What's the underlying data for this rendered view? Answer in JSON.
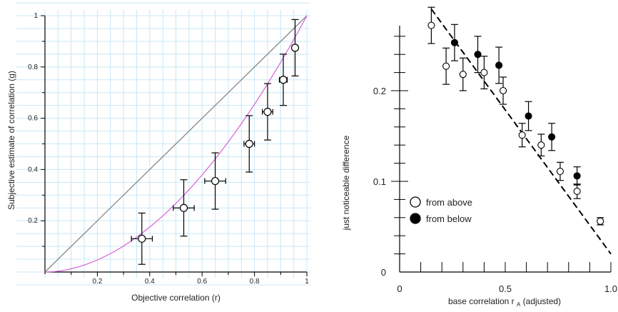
{
  "chart_data": [
    {
      "type": "scatter",
      "xlabel": "Objective correlation (r)",
      "ylabel": "Subjective estimate of correlation (g)",
      "xlim": [
        0,
        1
      ],
      "ylim": [
        0,
        1
      ],
      "x_ticks": [
        "0.2",
        "0.4",
        "0.6",
        "0.8",
        "1"
      ],
      "y_ticks": [
        "0.2",
        "0.4",
        "0.6",
        "0.8",
        "1"
      ],
      "grid": true,
      "grid_color": "#c8e8f5",
      "reference_line": {
        "from": [
          0,
          0
        ],
        "to": [
          1,
          1
        ],
        "color": "#888888"
      },
      "fit_curve": {
        "color": "#d860d8",
        "shape": "power",
        "exponent": 1.9
      },
      "points": [
        {
          "x": 0.37,
          "y": 0.13,
          "x_err": 0.04,
          "y_err": 0.1
        },
        {
          "x": 0.53,
          "y": 0.25,
          "x_err": 0.04,
          "y_err": 0.11
        },
        {
          "x": 0.65,
          "y": 0.355,
          "x_err": 0.04,
          "y_err": 0.11
        },
        {
          "x": 0.78,
          "y": 0.5,
          "x_err": 0.02,
          "y_err": 0.11
        },
        {
          "x": 0.85,
          "y": 0.625,
          "x_err": 0.02,
          "y_err": 0.11
        },
        {
          "x": 0.91,
          "y": 0.75,
          "x_err": 0.015,
          "y_err": 0.1
        },
        {
          "x": 0.955,
          "y": 0.875,
          "x_err": 0.01,
          "y_err": 0.11
        }
      ]
    },
    {
      "type": "scatter",
      "xlabel": "base correlation r",
      "xlabel_subscript": "A",
      "xlabel_suffix": "(adjusted)",
      "ylabel": "just noticeable difference",
      "xlim": [
        0,
        1
      ],
      "ylim": [
        0,
        0.28
      ],
      "x_ticks": [
        "0",
        "0.5",
        "1.0"
      ],
      "y_ticks": [
        "0",
        "0.1",
        "0.2"
      ],
      "legend": {
        "position": "left-center"
      },
      "fit_line": {
        "from": [
          0.15,
          0.29
        ],
        "to": [
          1.0,
          0.02
        ],
        "style": "dashed"
      },
      "series": [
        {
          "name": "from above",
          "fill": "#ffffff",
          "points": [
            {
              "x": 0.15,
              "y": 0.272,
              "err": 0.02
            },
            {
              "x": 0.22,
              "y": 0.227,
              "err": 0.02
            },
            {
              "x": 0.3,
              "y": 0.218,
              "err": 0.018
            },
            {
              "x": 0.4,
              "y": 0.22,
              "err": 0.018
            },
            {
              "x": 0.49,
              "y": 0.2,
              "err": 0.015
            },
            {
              "x": 0.58,
              "y": 0.151,
              "err": 0.013
            },
            {
              "x": 0.67,
              "y": 0.14,
              "err": 0.012
            },
            {
              "x": 0.76,
              "y": 0.111,
              "err": 0.01
            },
            {
              "x": 0.84,
              "y": 0.089,
              "err": 0.008
            },
            {
              "x": 0.95,
              "y": 0.056,
              "err": 0.004
            }
          ]
        },
        {
          "name": "from below",
          "fill": "#000000",
          "points": [
            {
              "x": 0.26,
              "y": 0.253,
              "err": 0.02
            },
            {
              "x": 0.37,
              "y": 0.24,
              "err": 0.02
            },
            {
              "x": 0.47,
              "y": 0.228,
              "err": 0.02
            },
            {
              "x": 0.61,
              "y": 0.172,
              "err": 0.016
            },
            {
              "x": 0.72,
              "y": 0.149,
              "err": 0.015
            },
            {
              "x": 0.84,
              "y": 0.106,
              "err": 0.01
            }
          ]
        }
      ]
    }
  ]
}
